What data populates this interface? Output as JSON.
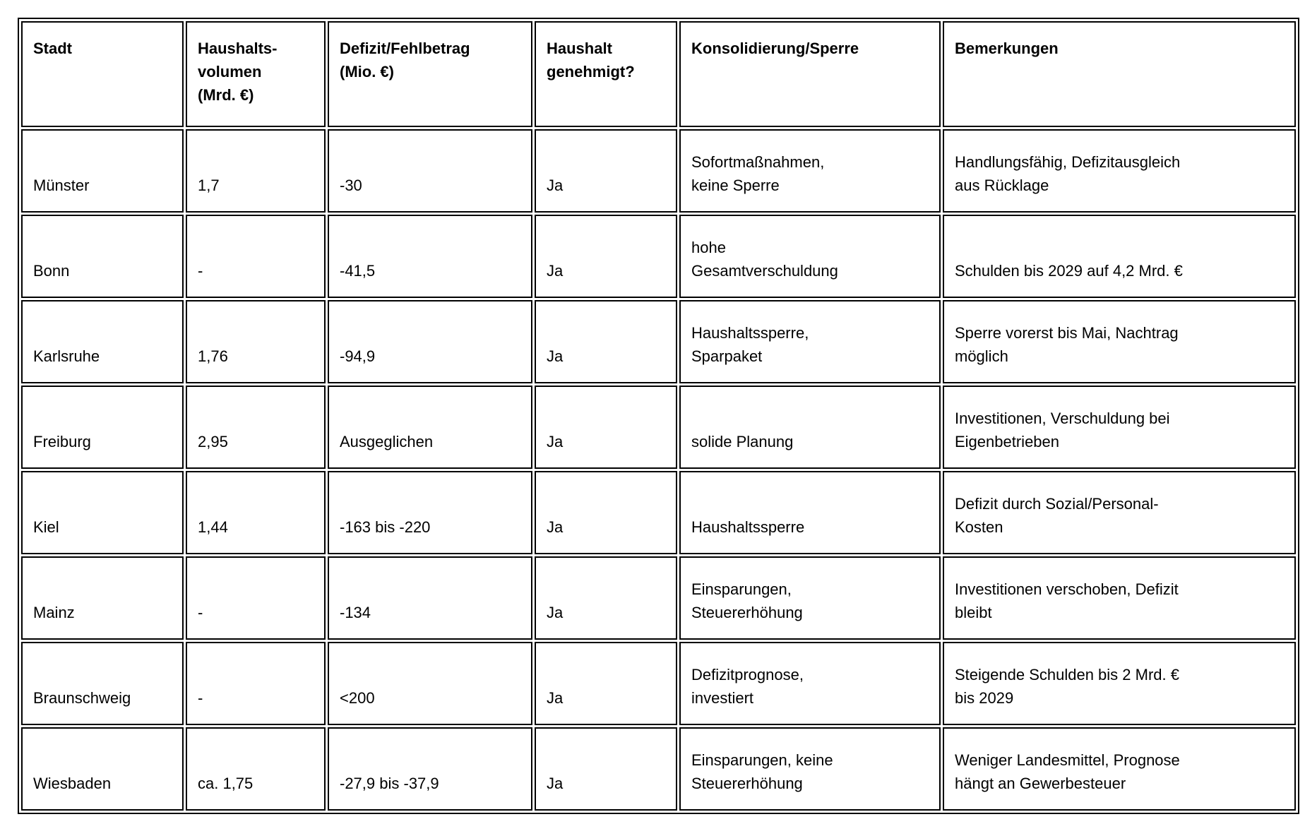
{
  "chart_data": {
    "type": "table",
    "columns": [
      "Stadt",
      "Haushalts-\nvolumen\n(Mrd. €)",
      "Defizit/Fehlbetrag\n(Mio. €)",
      "Haushalt\ngenehmigt?",
      "Konsolidierung/Sperre",
      "Bemerkungen"
    ],
    "rows": [
      [
        "Münster",
        "1,7",
        "-30",
        "Ja",
        "Sofortmaßnahmen,\nkeine Sperre",
        "Handlungsfähig, Defizitausgleich\naus Rücklage"
      ],
      [
        "Bonn",
        "-",
        "-41,5",
        "Ja",
        "hohe\nGesamtverschuldung",
        "Schulden bis 2029 auf 4,2 Mrd. €"
      ],
      [
        "Karlsruhe",
        "1,76",
        "-94,9",
        "Ja",
        "Haushaltssperre,\nSparpaket",
        "Sperre vorerst bis Mai, Nachtrag\nmöglich"
      ],
      [
        "Freiburg",
        "2,95",
        "Ausgeglichen",
        "Ja",
        "solide Planung",
        "Investitionen, Verschuldung bei\nEigenbetrieben"
      ],
      [
        "Kiel",
        "1,44",
        "-163 bis -220",
        "Ja",
        "Haushaltssperre",
        "Defizit durch Sozial/Personal-\nKosten"
      ],
      [
        "Mainz",
        "-",
        "-134",
        "Ja",
        "Einsparungen,\nSteuererhöhung",
        "Investitionen verschoben, Defizit\nbleibt"
      ],
      [
        "Braunschweig",
        "-",
        "<200",
        "Ja",
        "Defizitprognose,\ninvestiert",
        "Steigende Schulden bis 2 Mrd. €\nbis 2029"
      ],
      [
        "Wiesbaden",
        "ca. 1,75",
        "-27,9 bis -37,9",
        "Ja",
        "Einsparungen, keine\nSteuererhöhung",
        "Weniger Landesmittel, Prognose\nhängt an Gewerbesteuer"
      ]
    ],
    "colors": {
      "border": "#000000",
      "background": "#ffffff",
      "text": "#000000"
    }
  }
}
